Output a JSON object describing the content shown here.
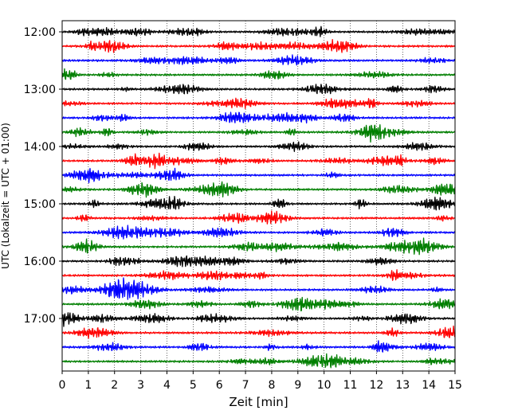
{
  "chart_data": {
    "type": "line",
    "title": "",
    "xlabel": "Zeit  [min]",
    "ylabel": "UTC (Lokalzeit = UTC + 01:00)",
    "xlim": [
      0,
      15
    ],
    "x_ticks": [
      "0",
      "1",
      "2",
      "3",
      "4",
      "5",
      "6",
      "7",
      "8",
      "9",
      "10",
      "11",
      "12",
      "13",
      "14",
      "15"
    ],
    "y_ticks": [
      "12:00",
      "13:00",
      "14:00",
      "15:00",
      "16:00",
      "17:00"
    ],
    "grid": "vertical-dotted",
    "trace_interval_min": 15,
    "series_colors": [
      "#000000",
      "#ff0000",
      "#0000ff",
      "#007f00"
    ],
    "traces": [
      {
        "time": "12:00",
        "color": "#000000"
      },
      {
        "time": "12:15",
        "color": "#ff0000"
      },
      {
        "time": "12:30",
        "color": "#0000ff"
      },
      {
        "time": "12:45",
        "color": "#007f00"
      },
      {
        "time": "13:00",
        "color": "#000000"
      },
      {
        "time": "13:15",
        "color": "#ff0000"
      },
      {
        "time": "13:30",
        "color": "#0000ff"
      },
      {
        "time": "13:45",
        "color": "#007f00"
      },
      {
        "time": "14:00",
        "color": "#000000"
      },
      {
        "time": "14:15",
        "color": "#ff0000"
      },
      {
        "time": "14:30",
        "color": "#0000ff"
      },
      {
        "time": "14:45",
        "color": "#007f00"
      },
      {
        "time": "15:00",
        "color": "#000000"
      },
      {
        "time": "15:15",
        "color": "#ff0000"
      },
      {
        "time": "15:30",
        "color": "#0000ff"
      },
      {
        "time": "15:45",
        "color": "#007f00"
      },
      {
        "time": "16:00",
        "color": "#000000"
      },
      {
        "time": "16:15",
        "color": "#ff0000"
      },
      {
        "time": "16:30",
        "color": "#0000ff"
      },
      {
        "time": "16:45",
        "color": "#007f00"
      },
      {
        "time": "17:00",
        "color": "#000000"
      },
      {
        "time": "17:15",
        "color": "#ff0000"
      },
      {
        "time": "17:30",
        "color": "#0000ff"
      },
      {
        "time": "17:45",
        "color": "#007f00"
      }
    ]
  }
}
